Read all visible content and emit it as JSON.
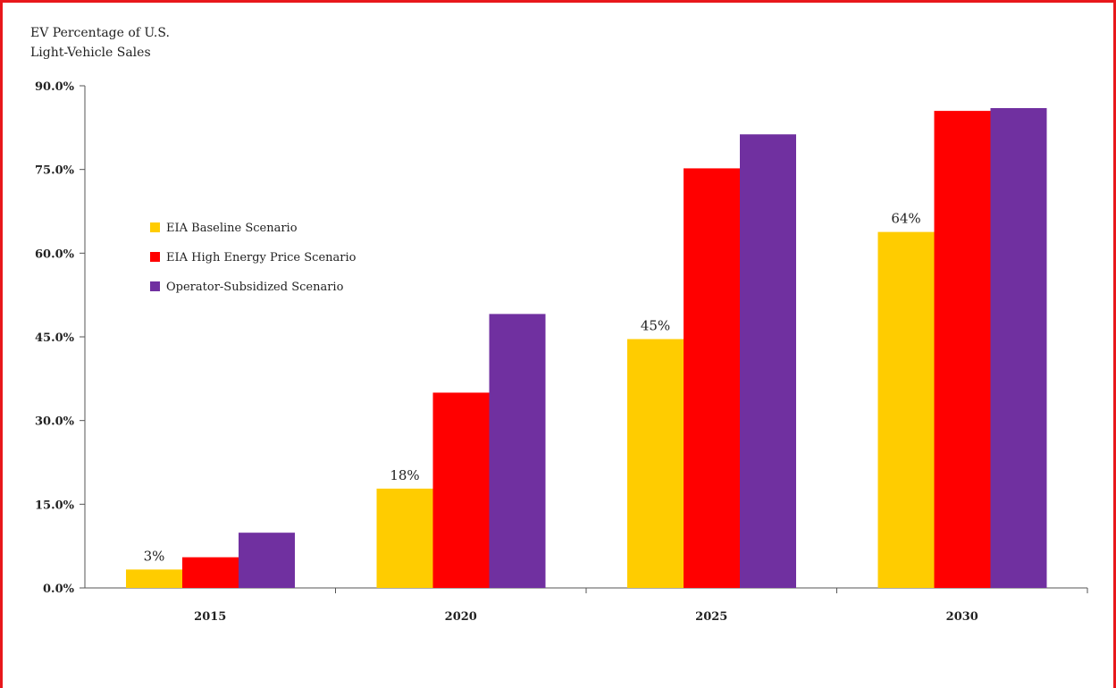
{
  "chart_data": {
    "type": "bar",
    "title_lines": [
      "EV Percentage of U.S.",
      "Light-Vehicle Sales"
    ],
    "categories": [
      "2015",
      "2020",
      "2025",
      "2030"
    ],
    "series": [
      {
        "name": "EIA Baseline Scenario",
        "color": "#ffcc00",
        "values": [
          3.3,
          17.8,
          44.6,
          63.8
        ]
      },
      {
        "name": "EIA High Energy Price Scenario",
        "color": "#ff0000",
        "values": [
          5.5,
          35.0,
          75.2,
          85.5
        ]
      },
      {
        "name": "Operator-Subsidized Scenario",
        "color": "#7030a0",
        "values": [
          9.9,
          49.1,
          81.3,
          86.0
        ]
      }
    ],
    "data_labels": [
      "3%",
      "18%",
      "45%",
      "64%"
    ],
    "ylim": [
      0,
      90
    ],
    "yticks": [
      0,
      15,
      30,
      45,
      60,
      75,
      90
    ],
    "ytick_labels": [
      "0.0%",
      "15.0%",
      "30.0%",
      "45.0%",
      "60.0%",
      "75.0%",
      "90.0%"
    ],
    "legend_position": "left",
    "grid": false
  }
}
